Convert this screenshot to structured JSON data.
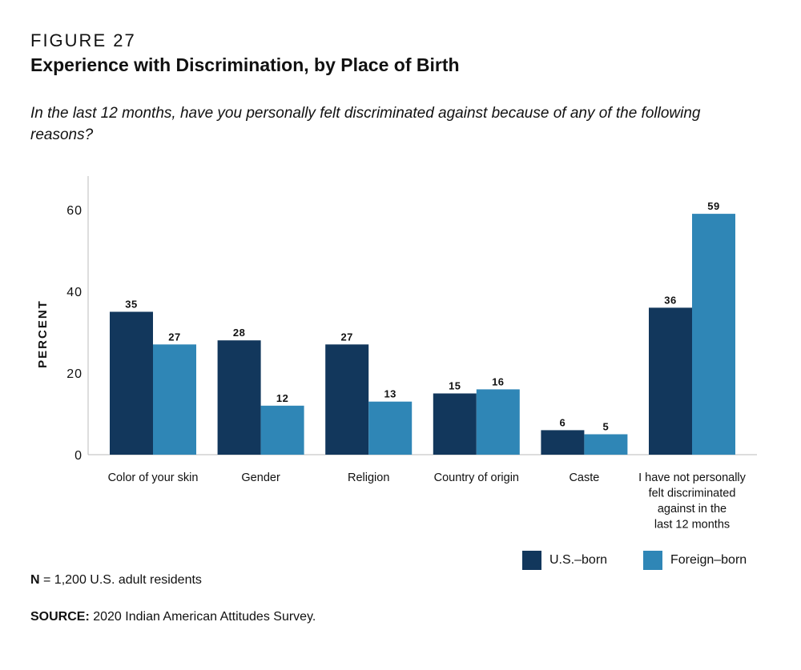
{
  "figure_label": "FIGURE 27",
  "title": "Experience with Discrimination, by Place of Birth",
  "subtitle": "In the last 12 months, have you personally felt discriminated against because of any of the following reasons?",
  "colors": {
    "us_born": "#12375c",
    "foreign_born": "#2f86b6",
    "axis": "#bbbbbb"
  },
  "chart_data": {
    "type": "bar",
    "title": "Experience with Discrimination, by Place of Birth",
    "xlabel": "",
    "ylabel": "PERCENT",
    "ylim": [
      0,
      68
    ],
    "yticks": [
      0,
      20,
      40,
      60
    ],
    "categories": [
      [
        "Color of your skin"
      ],
      [
        "Gender"
      ],
      [
        "Religion"
      ],
      [
        "Country of origin"
      ],
      [
        "Caste"
      ],
      [
        "I have not personally",
        "felt discriminated",
        "against in the",
        "last 12 months"
      ]
    ],
    "series": [
      {
        "name": "U.S.–born",
        "values": [
          35,
          28,
          27,
          15,
          6,
          36
        ]
      },
      {
        "name": "Foreign–born",
        "values": [
          27,
          12,
          13,
          16,
          5,
          59
        ]
      }
    ]
  },
  "legend": {
    "us_born": "U.S.–born",
    "foreign_born": "Foreign–born"
  },
  "notes": {
    "n_label": "N",
    "n_text": " = 1,200 U.S. adult residents",
    "source_label": "SOURCE:",
    "source_text": " 2020 Indian American Attitudes Survey."
  }
}
